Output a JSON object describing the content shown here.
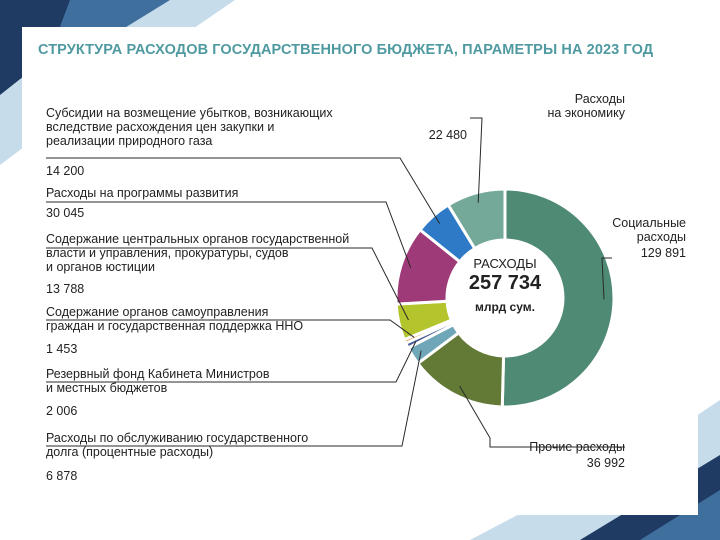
{
  "title": "СТРУКТУРА РАСХОДОВ ГОСУДАРСТВЕННОГО БЮДЖЕТА, ПАРАМЕТРЫ НА 2023 ГОД",
  "chart_data": {
    "type": "pie",
    "donut": true,
    "title": "СТРУКТУРА РАСХОДОВ ГОСУДАРСТВЕННОГО БЮДЖЕТА, ПАРАМЕТРЫ НА 2023 ГОД",
    "center": {
      "line1": "РАСХОДЫ",
      "value": "257 734",
      "unit": "млрд сум."
    },
    "slices": [
      {
        "label": "Социальные\nрасходы",
        "value": 129891,
        "value_text": "129 891",
        "color": "#4f8a74"
      },
      {
        "label": "Прочие расходы",
        "value": 36992,
        "value_text": "36 992",
        "color": "#637a37"
      },
      {
        "label": "Расходы по обслуживанию государственного\nдолга (процентные расходы)",
        "value": 6878,
        "value_text": "6 878",
        "color": "#6fa6b8"
      },
      {
        "label": "Резервный фонд Кабинета Министров\nи местных бюджетов",
        "value": 2006,
        "value_text": "2 006",
        "color": "#4a5b93"
      },
      {
        "label": "Содержание органов самоуправления\nграждан и государственная поддержка  ННО",
        "value": 1453,
        "value_text": "1 453",
        "color": "#e3843a"
      },
      {
        "label": "Содержание центральных органов государственной\nвласти и управления, прокуратуры, судов\nи органов юстиции",
        "value": 13788,
        "value_text": "13 788",
        "color": "#b4c42c"
      },
      {
        "label": "Расходы на программы развития",
        "value": 30045,
        "value_text": "30 045",
        "color": "#9e3a77"
      },
      {
        "label": "Субсидии на возмещение убытков, возникающих\nвследствие расхождения цен закупки и\nреализации природного газа",
        "value": 14200,
        "value_text": "14 200",
        "color": "#2f7ac6"
      },
      {
        "label": "Расходы\nна экономику",
        "value": 22480,
        "value_text": "22 480",
        "color": "#74a898"
      }
    ]
  }
}
